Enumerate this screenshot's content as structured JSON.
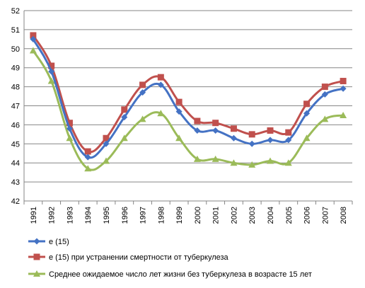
{
  "chart_data": {
    "type": "line",
    "title": "",
    "xlabel": "",
    "ylabel": "",
    "ylim": [
      42,
      52
    ],
    "y_ticks": [
      "42",
      "43",
      "44",
      "45",
      "46",
      "47",
      "48",
      "49",
      "50",
      "51",
      "52"
    ],
    "categories": [
      "1991",
      "1992",
      "1993",
      "1994",
      "1995",
      "1996",
      "1997",
      "1998",
      "1999",
      "2000",
      "2001",
      "2002",
      "2003",
      "2004",
      "2005",
      "2006",
      "2007",
      "2008"
    ],
    "grid": true,
    "legend_position": "bottom",
    "series": [
      {
        "name": "e (15)",
        "color": "#4472C4",
        "marker": "diamond",
        "values": [
          50.5,
          48.8,
          45.8,
          44.3,
          45.0,
          46.4,
          47.7,
          48.1,
          46.7,
          45.7,
          45.7,
          45.3,
          45.0,
          45.2,
          45.2,
          46.6,
          47.6,
          47.9
        ]
      },
      {
        "name": "e (15) при устранении смертности от туберкулеза",
        "color": "#C0504D",
        "marker": "square",
        "values": [
          50.7,
          49.1,
          46.1,
          44.6,
          45.3,
          46.8,
          48.1,
          48.5,
          47.2,
          46.2,
          46.1,
          45.8,
          45.5,
          45.7,
          45.6,
          47.1,
          48.0,
          48.3
        ]
      },
      {
        "name": "Среднее ожидаемое число лет жизни без туберкулеза в возрасте 15 лет",
        "color": "#9BBB59",
        "marker": "triangle",
        "values": [
          49.9,
          48.3,
          45.3,
          43.7,
          44.1,
          45.3,
          46.3,
          46.6,
          45.3,
          44.2,
          44.2,
          44.0,
          43.9,
          44.1,
          44.0,
          45.3,
          46.3,
          46.5
        ]
      }
    ]
  }
}
